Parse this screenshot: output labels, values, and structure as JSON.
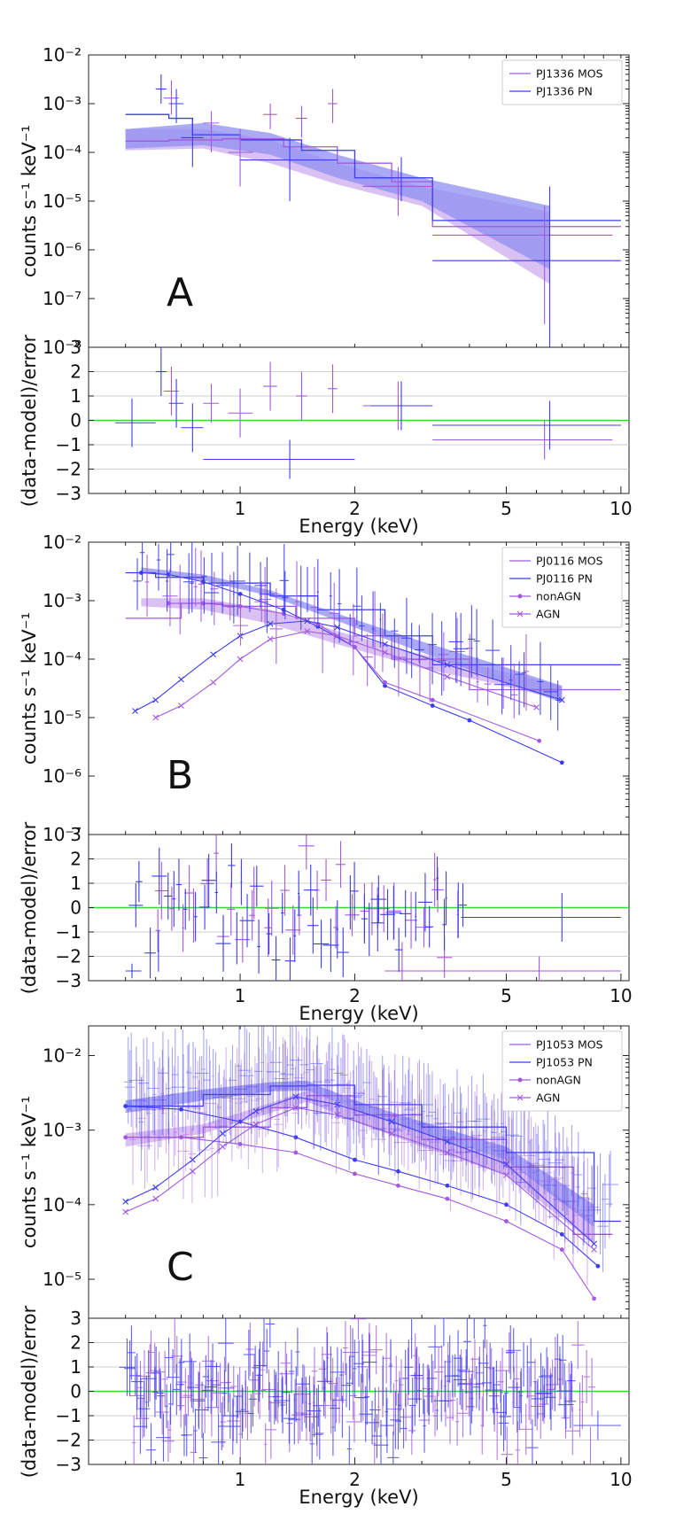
{
  "colors": {
    "mos": "#a359de",
    "pn": "#3c3cf0",
    "mos_band": "#c9a6ee",
    "pn_band": "#8e8ef2",
    "zero_line": "#33dd33"
  },
  "chart_data": [
    {
      "type": "line",
      "letter": "A",
      "ylabel": "counts s⁻¹ keV⁻¹",
      "resid_ylabel": "(data-model)/error",
      "xlabel": "Energy (keV)",
      "x_log": true,
      "y_log": true,
      "xlim": [
        0.4,
        10.5
      ],
      "ylim": [
        1e-08,
        0.01
      ],
      "x_ticks": [
        1,
        2,
        5,
        10
      ],
      "y_ticks": [
        0.01,
        0.001,
        0.0001,
        1e-05,
        1e-06,
        1e-07,
        1e-08
      ],
      "y_tick_labels": [
        "10⁻²",
        "10⁻³",
        "10⁻⁴",
        "10⁻⁵",
        "10⁻⁶",
        "10⁻⁷",
        "10⁻⁸"
      ],
      "resid_ylim": [
        -3,
        3
      ],
      "resid_ticks": [
        3,
        2,
        1,
        0,
        -1,
        -2,
        -3
      ],
      "resid_tick_labels": [
        "3",
        "2",
        "1",
        "0",
        "−1",
        "−2",
        "−3"
      ],
      "legend": [
        {
          "label": "PJ1336 MOS",
          "key": "mos",
          "marker": "none"
        },
        {
          "label": "PJ1336 PN",
          "key": "pn",
          "marker": "none"
        }
      ],
      "bands": [
        {
          "key": "mos",
          "x": [
            0.5,
            0.8,
            1.2,
            1.8,
            3,
            6.5
          ],
          "lo": [
            0.00011,
            0.00012,
            6e-05,
            2.2e-05,
            8e-06,
            2e-07
          ],
          "hi": [
            0.0003,
            0.0003,
            0.00018,
            6e-05,
            2e-05,
            6e-06
          ]
        },
        {
          "key": "pn",
          "x": [
            0.5,
            0.8,
            1.2,
            1.8,
            3,
            6.5
          ],
          "lo": [
            0.00012,
            0.00014,
            9e-05,
            3e-05,
            1e-05,
            4e-07
          ],
          "hi": [
            0.0003,
            0.0004,
            0.00025,
            9e-05,
            3e-05,
            8e-06
          ]
        }
      ],
      "model_steps": [
        {
          "key": "mos",
          "x": [
            0.5,
            0.65,
            0.9,
            1.3,
            1.8,
            2.5,
            3.2,
            10
          ],
          "y": [
            0.00017,
            0.00018,
            0.00019,
            0.00013,
            6e-05,
            2.5e-05,
            3e-06,
            3e-06
          ]
        },
        {
          "key": "pn",
          "x": [
            0.5,
            0.65,
            0.75,
            1.0,
            1.45,
            2.0,
            3.2,
            10
          ],
          "y": [
            0.0006,
            0.0005,
            0.00023,
            0.00018,
            0.00011,
            3e-05,
            4e-06,
            4e-06
          ]
        }
      ],
      "model_lines": [],
      "points": [
        {
          "key": "mos",
          "x": [
            0.66,
            0.84,
            1.0,
            1.2,
            1.45,
            1.75,
            2.6,
            6.3
          ],
          "y": [
            0.0013,
            0.0004,
            0.0001,
            0.0006,
            0.0005,
            0.001,
            2e-05,
            2e-06
          ],
          "xlo": [
            0.63,
            0.8,
            0.93,
            1.15,
            1.4,
            1.7,
            2.1,
            3.2
          ],
          "xhi": [
            0.69,
            0.88,
            1.08,
            1.25,
            1.5,
            1.8,
            3.2,
            9.5
          ],
          "ylo": [
            0.0006,
            0.0001,
            2e-05,
            0.0003,
            0.0002,
            0.0004,
            5e-06,
            3e-08
          ],
          "yhi": [
            0.003,
            0.0007,
            0.0003,
            0.001,
            0.0009,
            0.002,
            5e-05,
            8e-06
          ]
        },
        {
          "key": "pn",
          "x": [
            0.62,
            0.68,
            0.75,
            1.35,
            2.65,
            6.5
          ],
          "y": [
            0.002,
            0.001,
            0.0002,
            7e-05,
            3e-05,
            6e-07
          ],
          "xlo": [
            0.6,
            0.65,
            0.7,
            1.0,
            2.2,
            3.2
          ],
          "xhi": [
            0.64,
            0.71,
            0.8,
            1.8,
            3.2,
            10
          ],
          "ylo": [
            0.001,
            0.0004,
            5e-05,
            1e-05,
            1e-05,
            1e-08
          ],
          "yhi": [
            0.004,
            0.002,
            0.0005,
            0.0002,
            8e-05,
            2e-05
          ]
        }
      ],
      "resid": [
        {
          "key": "mos",
          "x": [
            0.66,
            0.84,
            1.0,
            1.2,
            1.45,
            1.75,
            2.6,
            6.3
          ],
          "y": [
            1.2,
            0.7,
            0.3,
            1.4,
            1.0,
            1.3,
            0.6,
            -0.8
          ],
          "xlo": [
            0.63,
            0.8,
            0.93,
            1.15,
            1.4,
            1.7,
            2.1,
            3.2
          ],
          "xhi": [
            0.69,
            0.88,
            1.08,
            1.25,
            1.5,
            1.8,
            3.2,
            9.5
          ],
          "err": [
            1,
            0.8,
            1,
            1,
            1,
            1,
            1,
            0.8
          ]
        },
        {
          "key": "pn",
          "x": [
            0.52,
            0.62,
            0.68,
            0.75,
            1.35,
            2.65,
            6.5
          ],
          "y": [
            -0.1,
            2.0,
            0.7,
            -0.3,
            -1.6,
            0.6,
            -0.2
          ],
          "xlo": [
            0.47,
            0.6,
            0.65,
            0.7,
            0.8,
            2.2,
            3.2
          ],
          "xhi": [
            0.6,
            0.64,
            0.71,
            0.8,
            2.0,
            3.2,
            10
          ],
          "err": [
            1,
            1,
            1,
            1,
            0.8,
            1,
            1
          ]
        }
      ]
    },
    {
      "type": "line",
      "letter": "B",
      "ylabel": "counts s⁻¹ keV⁻¹",
      "resid_ylabel": "(data-model)/error",
      "xlabel": "Energy (keV)",
      "x_log": true,
      "y_log": true,
      "xlim": [
        0.4,
        10.5
      ],
      "ylim": [
        1e-07,
        0.01
      ],
      "x_ticks": [
        1,
        2,
        5,
        10
      ],
      "y_ticks": [
        0.01,
        0.001,
        0.0001,
        1e-05,
        1e-06,
        1e-07
      ],
      "y_tick_labels": [
        "10⁻²",
        "10⁻³",
        "10⁻⁴",
        "10⁻⁵",
        "10⁻⁶",
        "10⁻⁷"
      ],
      "resid_ylim": [
        -3,
        3
      ],
      "resid_ticks": [
        3,
        2,
        1,
        0,
        -1,
        -2,
        -3
      ],
      "resid_tick_labels": [
        "3",
        "2",
        "1",
        "0",
        "−1",
        "−2",
        "−3"
      ],
      "legend": [
        {
          "label": "PJ0116 MOS",
          "key": "mos",
          "marker": "none"
        },
        {
          "label": "PJ0116 PN",
          "key": "pn",
          "marker": "none"
        },
        {
          "label": "nonAGN",
          "key": "mos",
          "marker": "dot"
        },
        {
          "label": "AGN",
          "key": "mos",
          "marker": "x"
        }
      ],
      "bands": [
        {
          "key": "mos",
          "x": [
            0.55,
            0.8,
            1.2,
            1.8,
            3,
            4.5,
            7
          ],
          "lo": [
            0.0008,
            0.0007,
            0.0004,
            0.00018,
            7e-05,
            4e-05,
            2e-05
          ],
          "hi": [
            0.0011,
            0.0011,
            0.0007,
            0.0003,
            0.00012,
            7e-05,
            3.5e-05
          ]
        },
        {
          "key": "pn",
          "x": [
            0.55,
            0.8,
            1.2,
            1.8,
            3,
            4.5,
            7
          ],
          "lo": [
            0.003,
            0.0022,
            0.0012,
            0.00045,
            0.00013,
            5e-05,
            1.8e-05
          ],
          "hi": [
            0.0037,
            0.0028,
            0.0015,
            0.0006,
            0.0002,
            9e-05,
            3.5e-05
          ]
        }
      ],
      "model_steps": [
        {
          "key": "mos",
          "x": [
            0.5,
            0.7,
            0.9,
            1.4,
            2.0,
            2.5,
            4.0,
            10
          ],
          "y": [
            0.0005,
            0.0009,
            0.0008,
            0.0005,
            0.00025,
            0.0001,
            3e-05,
            3e-05
          ]
        },
        {
          "key": "pn",
          "x": [
            0.5,
            0.6,
            0.8,
            1.2,
            1.6,
            2.4,
            3.2,
            10
          ],
          "y": [
            0.003,
            0.0025,
            0.002,
            0.0012,
            0.0007,
            0.00025,
            8e-05,
            2e-05
          ]
        }
      ],
      "model_lines": [
        {
          "key": "pn",
          "marker": "dot",
          "x": [
            0.55,
            0.65,
            0.8,
            1.0,
            1.3,
            1.6,
            2.0,
            2.4,
            3.2,
            4.0,
            7.0
          ],
          "y": [
            0.003,
            0.0028,
            0.0021,
            0.0013,
            0.0007,
            0.00036,
            0.00016,
            3.5e-05,
            1.6e-05,
            9e-06,
            1.7e-06
          ]
        },
        {
          "key": "mos",
          "marker": "dot",
          "x": [
            0.65,
            0.8,
            1.0,
            1.3,
            1.6,
            2.0,
            2.4,
            3.2,
            6.1
          ],
          "y": [
            0.0009,
            0.0009,
            0.0008,
            0.0006,
            0.0004,
            0.00016,
            4e-05,
            2e-05,
            4e-06
          ]
        },
        {
          "key": "pn",
          "marker": "x",
          "x": [
            0.53,
            0.6,
            0.7,
            0.85,
            1.0,
            1.2,
            1.5,
            1.8,
            2.4,
            3.5,
            7.0
          ],
          "y": [
            1.3e-05,
            2e-05,
            4.5e-05,
            0.00012,
            0.00025,
            0.0004,
            0.00045,
            0.00035,
            0.00018,
            8e-05,
            2e-05
          ]
        },
        {
          "key": "mos",
          "marker": "x",
          "x": [
            0.6,
            0.7,
            0.85,
            1.0,
            1.2,
            1.5,
            1.8,
            2.4,
            3.5,
            6.0
          ],
          "y": [
            1e-05,
            1.6e-05,
            4e-05,
            0.0001,
            0.00022,
            0.0003,
            0.00025,
            0.00013,
            5e-05,
            1.5e-05
          ]
        }
      ],
      "points": [
        {
          "key": "mos",
          "n": 30,
          "x0": 0.56,
          "x1": 6.1,
          "seed": 3
        },
        {
          "key": "pn",
          "n": 45,
          "x0": 0.52,
          "x1": 7.0,
          "seed": 7
        }
      ],
      "resid": [
        {
          "key": "mos",
          "n": 36,
          "x0": 0.58,
          "x1": 3.8,
          "seed": 11,
          "extra": [
            {
              "x": 6.1,
              "y": -2.6,
              "xlo": 2.4,
              "xhi": 10,
              "err": 0.6
            }
          ]
        },
        {
          "key": "pn",
          "n": 50,
          "x0": 0.52,
          "x1": 3.9,
          "seed": 13,
          "extra": [
            {
              "x": 0.52,
              "y": -2.6,
              "xlo": 0.5,
              "xhi": 0.55,
              "err": 0.3
            },
            {
              "x": 7.0,
              "y": -0.4,
              "xlo": 3.8,
              "xhi": 10,
              "err": 1
            }
          ]
        }
      ]
    },
    {
      "type": "line",
      "letter": "C",
      "ylabel": "counts s⁻¹ keV⁻¹",
      "resid_ylabel": "(data-model)/error",
      "xlabel": "Energy (keV)",
      "x_log": true,
      "y_log": true,
      "xlim": [
        0.4,
        10.5
      ],
      "ylim": [
        3e-06,
        0.025
      ],
      "x_ticks": [
        1,
        2,
        5,
        10
      ],
      "y_ticks": [
        0.01,
        0.001,
        0.0001,
        1e-05
      ],
      "y_tick_labels": [
        "10⁻²",
        "10⁻³",
        "10⁻⁴",
        "10⁻⁵"
      ],
      "resid_ylim": [
        -3,
        3
      ],
      "resid_ticks": [
        3,
        2,
        1,
        0,
        -1,
        -2,
        -3
      ],
      "resid_tick_labels": [
        "3",
        "2",
        "1",
        "0",
        "−1",
        "−2",
        "−3"
      ],
      "legend": [
        {
          "label": "PJ1053 MOS",
          "key": "mos",
          "marker": "none"
        },
        {
          "label": "PJ1053 PN",
          "key": "pn",
          "marker": "none"
        },
        {
          "label": "nonAGN",
          "key": "mos",
          "marker": "dot"
        },
        {
          "label": "AGN",
          "key": "mos",
          "marker": "x"
        }
      ],
      "bands": [
        {
          "key": "mos",
          "x": [
            0.5,
            0.8,
            1.2,
            1.5,
            2.0,
            3.0,
            5.0,
            8.5
          ],
          "lo": [
            0.0006,
            0.0009,
            0.0017,
            0.0024,
            0.0013,
            0.0006,
            0.00025,
            3e-05
          ],
          "hi": [
            0.0009,
            0.0012,
            0.0023,
            0.0034,
            0.0019,
            0.0009,
            0.0004,
            6e-05
          ]
        },
        {
          "key": "pn",
          "x": [
            0.5,
            0.8,
            1.2,
            1.5,
            2.0,
            3.0,
            5.0,
            8.5
          ],
          "lo": [
            0.0017,
            0.0025,
            0.0033,
            0.0034,
            0.0019,
            0.0009,
            0.0004,
            5e-05
          ],
          "hi": [
            0.0025,
            0.0035,
            0.0044,
            0.0046,
            0.0025,
            0.0013,
            0.0006,
            0.0001
          ]
        }
      ],
      "model_steps": [
        {
          "key": "mos",
          "x": [
            0.5,
            0.8,
            1.2,
            1.5,
            2.0,
            3.0,
            5.0,
            7.5,
            9.5
          ],
          "y": [
            0.0008,
            0.0011,
            0.002,
            0.0029,
            0.0016,
            0.00075,
            0.00032,
            4e-05,
            2.5e-05
          ]
        },
        {
          "key": "pn",
          "x": [
            0.5,
            0.8,
            1.2,
            1.5,
            2.0,
            3.0,
            5.0,
            8.5,
            10
          ],
          "y": [
            0.0021,
            0.003,
            0.0039,
            0.004,
            0.0022,
            0.0011,
            0.0005,
            6e-05,
            6e-05
          ]
        }
      ],
      "model_lines": [
        {
          "key": "pn",
          "marker": "dot",
          "x": [
            0.5,
            0.7,
            1.0,
            1.4,
            2.0,
            2.6,
            3.5,
            5.0,
            7.0,
            8.7
          ],
          "y": [
            0.0021,
            0.0019,
            0.0013,
            0.0008,
            0.0004,
            0.00028,
            0.00018,
            0.0001,
            4e-05,
            1.5e-05
          ]
        },
        {
          "key": "mos",
          "marker": "dot",
          "x": [
            0.5,
            0.7,
            1.0,
            1.4,
            2.0,
            2.6,
            3.5,
            5.0,
            7.0,
            8.5
          ],
          "y": [
            0.0008,
            0.0008,
            0.00065,
            0.0005,
            0.00026,
            0.00018,
            0.00012,
            6e-05,
            2.5e-05,
            5.5e-06
          ]
        },
        {
          "key": "pn",
          "marker": "x",
          "x": [
            0.5,
            0.6,
            0.75,
            0.9,
            1.1,
            1.4,
            1.8,
            2.5,
            3.5,
            5.0,
            8.5
          ],
          "y": [
            0.00011,
            0.00017,
            0.0004,
            0.0009,
            0.0018,
            0.0028,
            0.0022,
            0.0013,
            0.0007,
            0.00035,
            3e-05
          ]
        },
        {
          "key": "mos",
          "marker": "x",
          "x": [
            0.5,
            0.6,
            0.75,
            0.9,
            1.1,
            1.4,
            1.8,
            2.5,
            3.5,
            5.0,
            8.5
          ],
          "y": [
            8e-05,
            0.00012,
            0.00028,
            0.0006,
            0.0012,
            0.002,
            0.0016,
            0.0009,
            0.0005,
            0.00025,
            2.5e-05
          ]
        }
      ],
      "points": [
        {
          "key": "mos",
          "n": 140,
          "x0": 0.52,
          "x1": 8.5,
          "seed": 21
        },
        {
          "key": "pn",
          "n": 170,
          "x0": 0.5,
          "x1": 9.5,
          "seed": 23
        }
      ],
      "resid": [
        {
          "key": "mos",
          "n": 150,
          "x0": 0.52,
          "x1": 8.5,
          "seed": 31,
          "extra": []
        },
        {
          "key": "pn",
          "n": 180,
          "x0": 0.5,
          "x1": 7.5,
          "seed": 37,
          "extra": [
            {
              "x": 8.7,
              "y": -1.4,
              "xlo": 7.5,
              "xhi": 10,
              "err": 0.6
            }
          ]
        }
      ]
    }
  ]
}
